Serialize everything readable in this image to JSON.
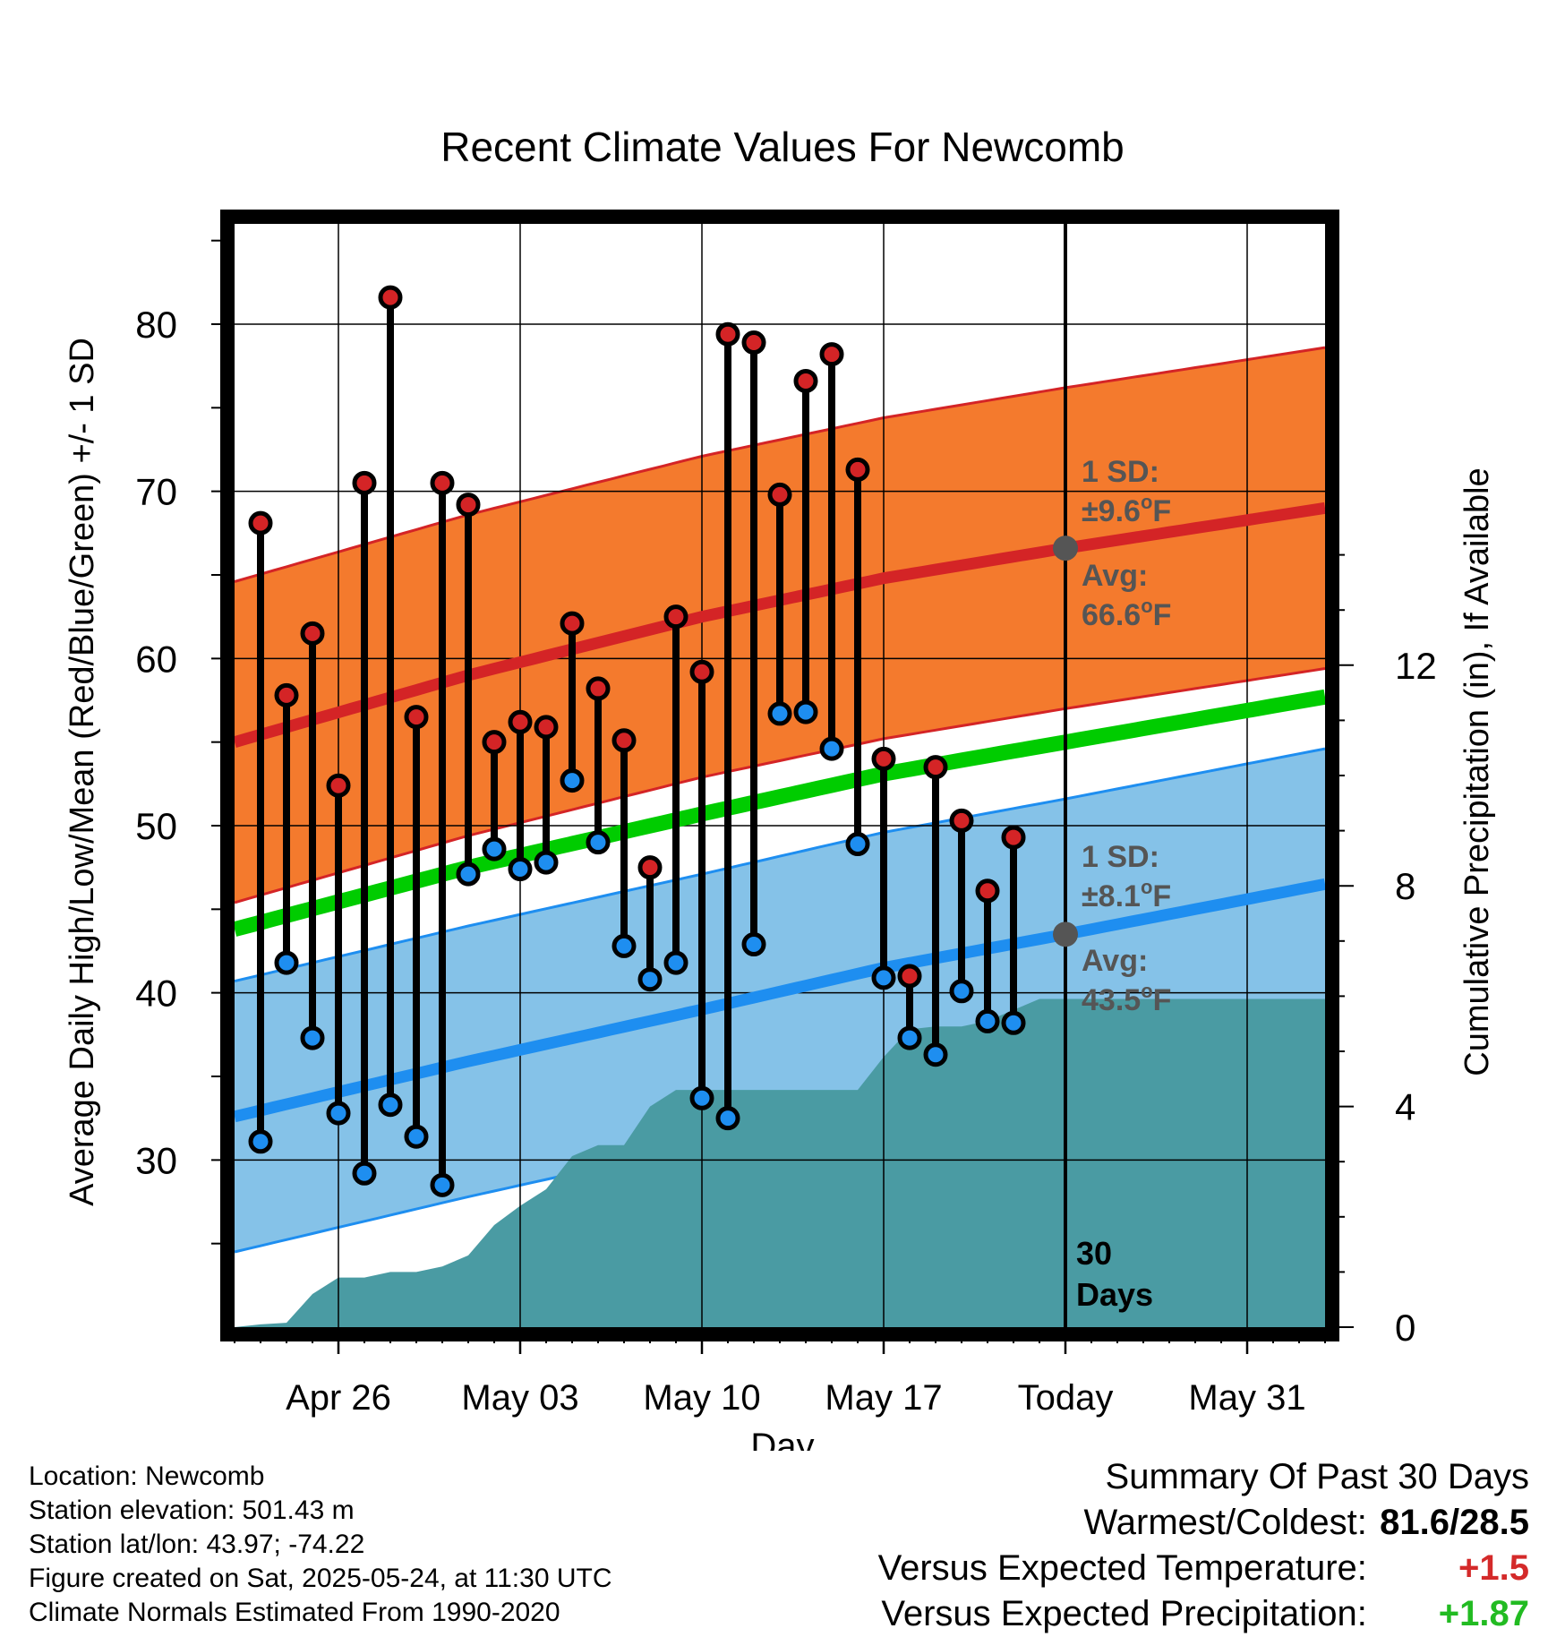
{
  "chart_data": {
    "type": "line",
    "title": "Recent Climate Values For Newcomb",
    "xlabel": "Day",
    "ylabel": "Average Daily High/Low/Mean (Red/Blue/Green) +/- 1 SD",
    "y2label": "Cumulative Precipitation (in), If Available",
    "xlim": [
      "2025-04-22",
      "2025-06-03"
    ],
    "ylim": [
      20,
      86
    ],
    "y2lim": [
      0,
      20
    ],
    "yticks": [
      30,
      40,
      50,
      60,
      70,
      80
    ],
    "y2ticks": [
      0,
      4,
      8,
      12
    ],
    "xtick_dates": [
      "2025-04-26",
      "2025-05-03",
      "2025-05-10",
      "2025-05-17",
      "2025-05-24",
      "2025-05-31"
    ],
    "xtick_labels": [
      "Apr 26",
      "May 03",
      "May 10",
      "May 17",
      "Today",
      "May 31"
    ],
    "grid": true,
    "today": "2025-05-24",
    "today_label": "30 Days",
    "dates": [
      "2025-04-23",
      "2025-04-24",
      "2025-04-25",
      "2025-04-26",
      "2025-04-27",
      "2025-04-28",
      "2025-04-29",
      "2025-04-30",
      "2025-05-01",
      "2025-05-02",
      "2025-05-03",
      "2025-05-04",
      "2025-05-05",
      "2025-05-06",
      "2025-05-07",
      "2025-05-08",
      "2025-05-09",
      "2025-05-10",
      "2025-05-11",
      "2025-05-12",
      "2025-05-13",
      "2025-05-14",
      "2025-05-15",
      "2025-05-16",
      "2025-05-17",
      "2025-05-18",
      "2025-05-19",
      "2025-05-20",
      "2025-05-21",
      "2025-05-22",
      "2025-05-23"
    ],
    "daily_high": [
      68.1,
      57.8,
      61.5,
      52.4,
      70.5,
      81.6,
      56.5,
      70.5,
      69.2,
      55.0,
      56.2,
      55.9,
      62.1,
      58.2,
      55.1,
      47.5,
      62.5,
      59.2,
      79.4,
      78.9,
      69.8,
      76.6,
      78.2,
      71.3,
      54.0,
      41.0,
      53.5,
      50.3,
      46.1,
      49.3,
      null
    ],
    "daily_low": [
      31.1,
      41.8,
      37.3,
      32.8,
      29.2,
      33.3,
      31.4,
      28.5,
      47.1,
      48.6,
      47.4,
      47.8,
      52.7,
      49.0,
      42.8,
      40.8,
      41.8,
      33.7,
      32.5,
      42.9,
      56.7,
      56.8,
      54.6,
      48.9,
      40.9,
      37.3,
      36.3,
      40.1,
      38.3,
      38.2,
      null
    ],
    "normal_dates": [
      "2025-04-22",
      "2025-05-01",
      "2025-05-10",
      "2025-05-17",
      "2025-05-24",
      "2025-06-03"
    ],
    "normal_high": [
      55.0,
      59.0,
      62.5,
      64.8,
      66.6,
      69.0
    ],
    "normal_high_sd": 9.6,
    "normal_low": [
      32.6,
      35.9,
      39.0,
      41.5,
      43.5,
      46.5
    ],
    "normal_low_sd": 8.1,
    "normal_mean": [
      43.8,
      47.5,
      50.7,
      53.1,
      55.0,
      57.7
    ],
    "precip_dates": [
      "2025-04-22",
      "2025-04-23",
      "2025-04-24",
      "2025-04-25",
      "2025-04-26",
      "2025-04-27",
      "2025-04-28",
      "2025-04-29",
      "2025-04-30",
      "2025-05-01",
      "2025-05-02",
      "2025-05-03",
      "2025-05-04",
      "2025-05-05",
      "2025-05-06",
      "2025-05-07",
      "2025-05-08",
      "2025-05-09",
      "2025-05-10",
      "2025-05-11",
      "2025-05-12",
      "2025-05-13",
      "2025-05-14",
      "2025-05-15",
      "2025-05-16",
      "2025-05-17",
      "2025-05-18",
      "2025-05-19",
      "2025-05-20",
      "2025-05-21",
      "2025-05-22",
      "2025-05-23",
      "2025-05-24",
      "2025-06-03"
    ],
    "cumulative_precip": [
      0.0,
      0.05,
      0.08,
      0.6,
      0.9,
      0.9,
      1.0,
      1.0,
      1.1,
      1.3,
      1.85,
      2.2,
      2.5,
      3.1,
      3.3,
      3.3,
      4.0,
      4.3,
      4.3,
      4.3,
      4.3,
      4.3,
      4.3,
      4.3,
      4.3,
      4.9,
      5.4,
      5.45,
      5.45,
      5.55,
      5.75,
      5.95,
      5.95,
      5.95
    ],
    "annotations": {
      "high_sd_label": "1 SD:",
      "high_sd_value": "±9.6",
      "high_avg_label": "Avg:",
      "high_avg_value": "66.6",
      "low_sd_label": "1 SD:",
      "low_sd_value": "±8.1",
      "low_avg_label": "Avg:",
      "low_avg_value": "43.5",
      "deg_unit": "o",
      "f_unit": "F"
    }
  },
  "info": {
    "location": "Location: Newcomb",
    "elevation": "Station elevation: 501.43 m",
    "latlon": "Station lat/lon: 43.97; -74.22",
    "created": "Figure created on Sat, 2025-05-24, at 11:30 UTC",
    "normals": "Climate Normals Estimated From 1990-2020"
  },
  "summary": {
    "heading": "Summary Of Past 30 Days",
    "warm_cold_label": "Warmest/Coldest:",
    "warm_cold_value": "81.6/28.5",
    "temp_label": "Versus Expected Temperature:",
    "temp_value": "+1.5",
    "precip_label": "Versus Expected Precipitation:",
    "precip_value": "+1.87",
    "temp_color": "#d42a2a",
    "precip_color": "#22bb22"
  },
  "colors": {
    "high_band": "#f47a2d",
    "high_line": "#d42426",
    "high_band_edge": "#d42426",
    "low_band": "#85c2e8",
    "low_line": "#1e8ef0",
    "low_band_edge": "#1e8ef0",
    "mean_line": "#00cc00",
    "precip": "#4a9ba3",
    "high_dot": "#d42426",
    "low_dot": "#1e8ef0",
    "avg_dot": "#555555",
    "annotation_text": "#555555"
  }
}
